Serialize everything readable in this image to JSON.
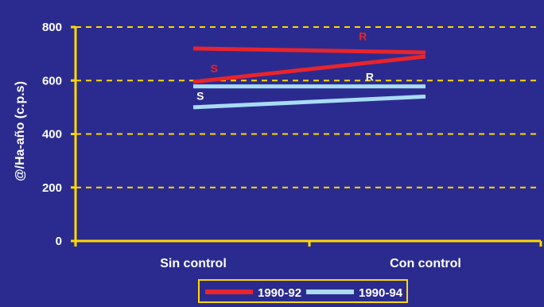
{
  "chart_data": {
    "type": "line",
    "ylabel": "@/Ha-año (c.p.s)",
    "xlabel": "",
    "ylim": [
      0,
      800
    ],
    "yticks": [
      0,
      200,
      400,
      600,
      800
    ],
    "grid": true,
    "grid_style": "dashed",
    "legend_position": "bottom",
    "categories": [
      "Sin control",
      "Con control"
    ],
    "series": [
      {
        "name": "1990-92",
        "label": "R",
        "values": [
          720,
          705
        ],
        "color": "#e8242c"
      },
      {
        "name": "1990-92",
        "label": "S",
        "values": [
          595,
          690
        ],
        "color": "#e8242c"
      },
      {
        "name": "1990-94",
        "label": "R",
        "values": [
          578,
          578
        ],
        "color": "#a8dcf5"
      },
      {
        "name": "1990-94",
        "label": "S",
        "values": [
          500,
          540
        ],
        "color": "#a8dcf5"
      }
    ],
    "legend": [
      {
        "name": "1990-92",
        "color": "#e8242c"
      },
      {
        "name": "1990-94",
        "color": "#a8dcf5"
      }
    ],
    "colors": {
      "background": "#2b2b8f",
      "axis": "#ffd800",
      "grid": "#ffd800",
      "text": "#ffffff"
    }
  }
}
